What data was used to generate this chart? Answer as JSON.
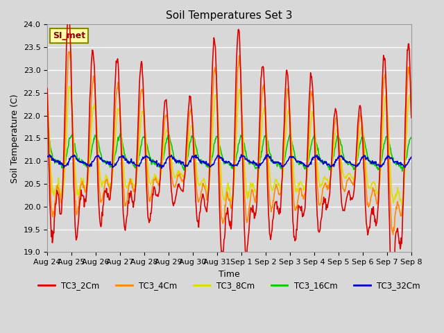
{
  "title": "Soil Temperatures Set 3",
  "xlabel": "Time",
  "ylabel": "Soil Temperature (C)",
  "ylim": [
    19.0,
    24.0
  ],
  "yticks": [
    19.0,
    19.5,
    20.0,
    20.5,
    21.0,
    21.5,
    22.0,
    22.5,
    23.0,
    23.5,
    24.0
  ],
  "xtick_labels": [
    "Aug 24",
    "Aug 25",
    "Aug 26",
    "Aug 27",
    "Aug 28",
    "Aug 29",
    "Aug 30",
    "Aug 31",
    "Sep 1",
    "Sep 2",
    "Sep 3",
    "Sep 4",
    "Sep 5",
    "Sep 6",
    "Sep 7",
    "Sep 8"
  ],
  "series": {
    "TC3_2Cm": {
      "color": "#dd0000",
      "lw": 1.2
    },
    "TC3_4Cm": {
      "color": "#ff8800",
      "lw": 1.2
    },
    "TC3_8Cm": {
      "color": "#dddd00",
      "lw": 1.2
    },
    "TC3_16Cm": {
      "color": "#00cc00",
      "lw": 1.2
    },
    "TC3_32Cm": {
      "color": "#0000cc",
      "lw": 1.2
    }
  },
  "background_color": "#d8d8d8",
  "plot_bg_color": "#d8d8d8",
  "grid_color": "#ffffff",
  "annotation_text": "SI_met",
  "annotation_bg": "#ffffaa",
  "annotation_border": "#888800"
}
